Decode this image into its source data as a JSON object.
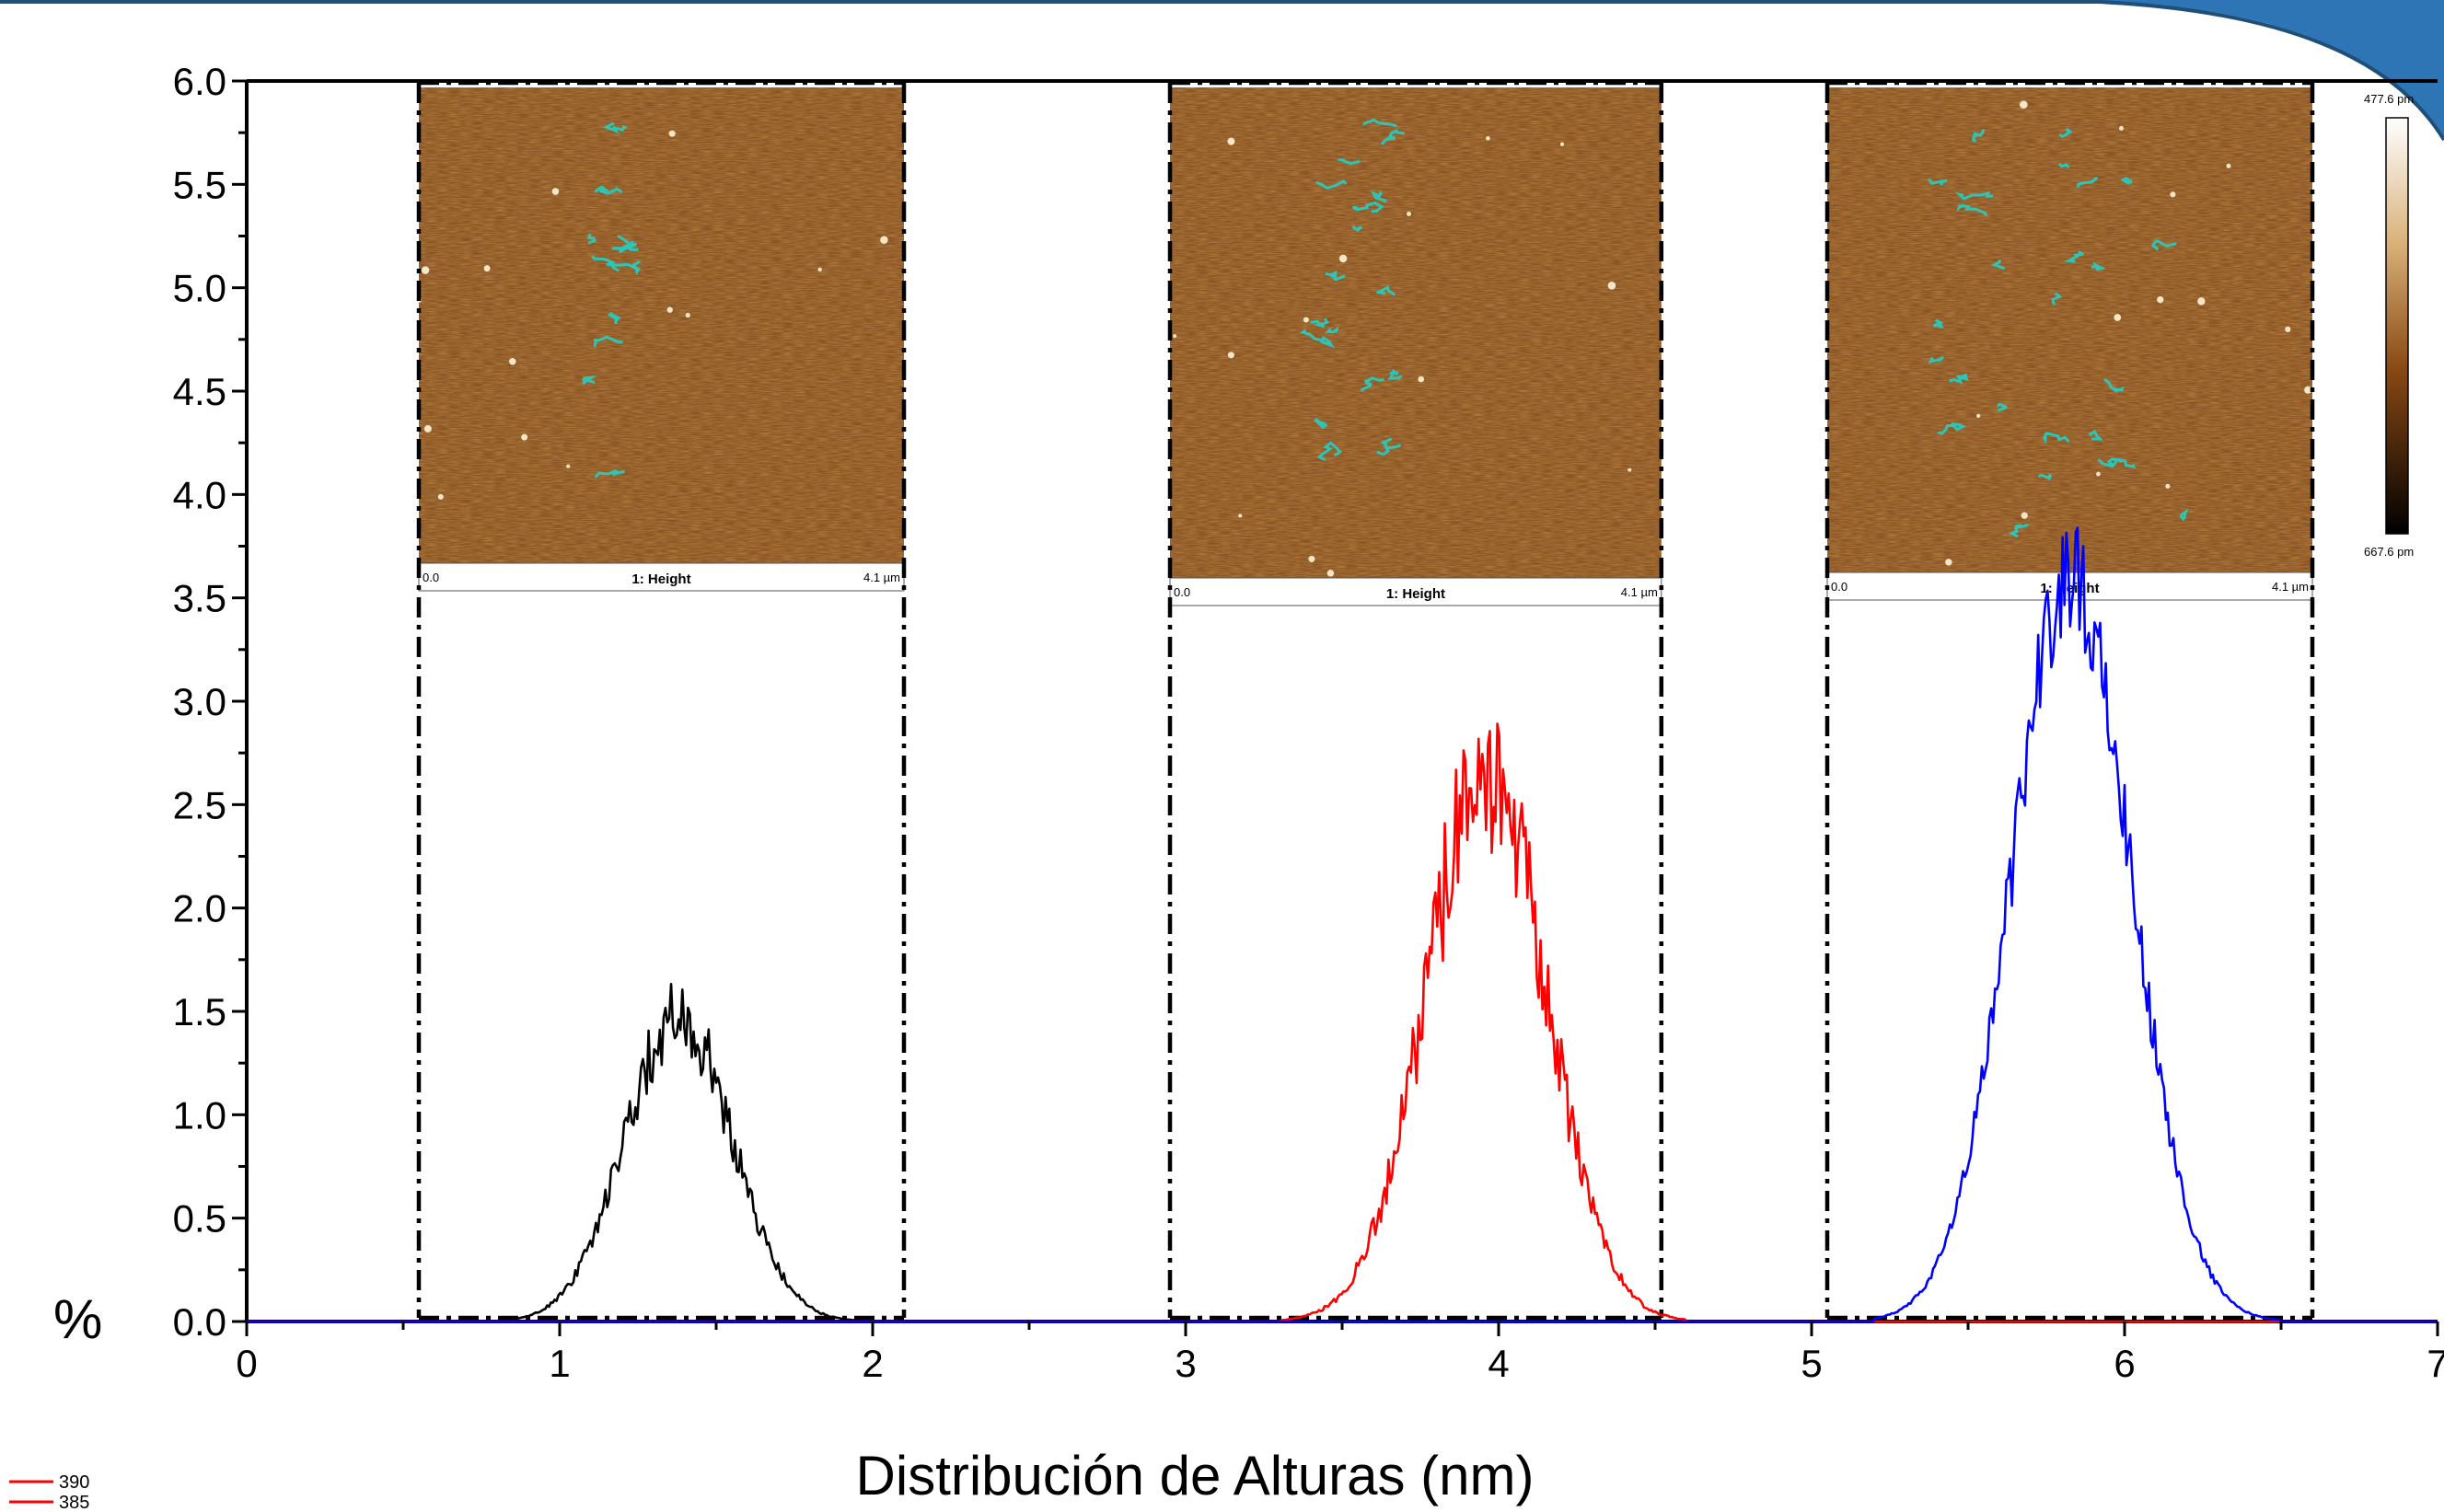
{
  "chart_data": {
    "type": "line",
    "xlabel": "Distribución de Alturas (nm)",
    "ylabel": "%",
    "xlim": [
      0,
      7
    ],
    "ylim": [
      0,
      6
    ],
    "x_ticks": [
      "0",
      "1",
      "2",
      "3",
      "4",
      "5",
      "6",
      "7"
    ],
    "y_ticks": [
      "0.0",
      "0.5",
      "1.0",
      "1.5",
      "2.0",
      "2.5",
      "3.0",
      "3.5",
      "4.0",
      "4.5",
      "5.0",
      "5.5",
      "6.0"
    ],
    "series": [
      {
        "color": "#000000",
        "center": 1.38,
        "sigma": 0.17,
        "peak": 1.48,
        "noise": 0.12,
        "range": [
          0.8,
          2.0
        ]
      },
      {
        "color": "#ff0000",
        "center": 3.96,
        "sigma": 0.19,
        "peak": 2.67,
        "noise": 0.15,
        "range": [
          3.3,
          4.6
        ]
      },
      {
        "color": "#0000ff",
        "center": 5.83,
        "sigma": 0.19,
        "peak": 3.6,
        "noise": 0.08,
        "range": [
          5.2,
          6.5
        ]
      }
    ],
    "legend_entries": [
      {
        "label": "390",
        "color": "#ff0000"
      },
      {
        "label": "385",
        "color": "#ff0000"
      }
    ],
    "insets": [
      {
        "caption": "1: Height",
        "left_label": "0.0",
        "right_label": "4.1 µm",
        "x_range": [
          0.55,
          2.1
        ]
      },
      {
        "caption": "1: Height",
        "left_label": "0.0",
        "right_label": "4.1 µm",
        "x_range": [
          2.95,
          4.52
        ]
      },
      {
        "caption": "1: Height",
        "left_label": "0.0",
        "right_label": "4.1 µm",
        "x_range": [
          5.05,
          6.6
        ]
      }
    ],
    "colorbar": {
      "top_label": "477.6 pm",
      "bottom_label": "667.6 pm"
    }
  }
}
